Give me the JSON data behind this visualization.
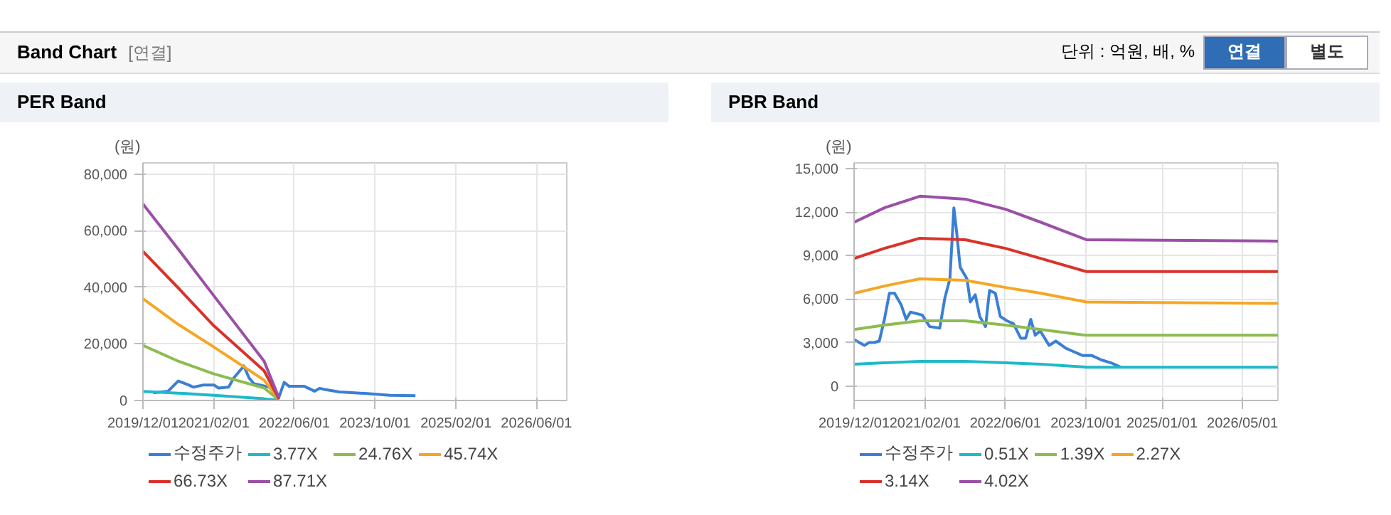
{
  "chart_data": [
    {
      "type": "other",
      "title": "Band Chart",
      "annotations": [
        "[연결]",
        "단위 : 억원, 배, %",
        "연결",
        "별도"
      ]
    },
    {
      "type": "line",
      "title": "PER Band",
      "ylabel": "(원)",
      "legend": "bottom",
      "grid": true,
      "marker": "none",
      "line_style": "solid",
      "xlim": [
        "2019-12-01",
        "2026-12-01"
      ],
      "xticks": [
        {
          "value": "2019-12-01",
          "label": "2019/12/01"
        },
        {
          "value": "2021-02-01",
          "label": "2021/02/01"
        },
        {
          "value": "2022-06-01",
          "label": "2022/06/01"
        },
        {
          "value": "2023-10-01",
          "label": "2023/10/01"
        },
        {
          "value": "2025-02-01",
          "label": "2025/02/01"
        },
        {
          "value": "2026-06-01",
          "label": "2026/06/01"
        }
      ],
      "ylim": [
        0,
        84000
      ],
      "yticks": [
        {
          "value": 0,
          "label": "0"
        },
        {
          "value": 20000,
          "label": "20,000"
        },
        {
          "value": 40000,
          "label": "40,000"
        },
        {
          "value": 60000,
          "label": "60,000"
        },
        {
          "value": 80000,
          "label": "80,000"
        }
      ],
      "series": [
        {
          "name": "수정주가",
          "color": "#3a7fd5",
          "x": [
            "2020-02",
            "2020-05",
            "2020-07",
            "2020-09",
            "2020-10",
            "2020-12",
            "2021-02",
            "2021-03",
            "2021-05",
            "2021-06",
            "2021-08",
            "2021-09",
            "2021-10",
            "2022-01",
            "2022-03",
            "2022-04",
            "2022-05",
            "2022-08",
            "2022-10",
            "2022-11",
            "2022-12",
            "2023-03",
            "2023-06",
            "2023-08",
            "2024-01",
            "2024-06"
          ],
          "values": [
            2700,
            3300,
            6900,
            5500,
            4700,
            5500,
            5500,
            4400,
            4700,
            8000,
            12200,
            8000,
            5900,
            4700,
            1300,
            6400,
            5000,
            5000,
            3300,
            4300,
            3900,
            3000,
            2700,
            2500,
            1800,
            1700
          ]
        },
        {
          "name": "3.77X",
          "color": "#1fb9c9",
          "x": [
            "2019-12",
            "2020-07",
            "2021-02",
            "2021-12",
            "2022-03"
          ],
          "values": [
            3200,
            2600,
            1800,
            600,
            50
          ]
        },
        {
          "name": "24.76X",
          "color": "#8dbb4f",
          "x": [
            "2019-12",
            "2020-07",
            "2021-02",
            "2021-12",
            "2022-03"
          ],
          "values": [
            19500,
            13900,
            9400,
            4400,
            200
          ]
        },
        {
          "name": "45.74X",
          "color": "#f5a623",
          "x": [
            "2019-12",
            "2020-07",
            "2021-02",
            "2021-12",
            "2022-03"
          ],
          "values": [
            36000,
            26900,
            18900,
            7200,
            300
          ]
        },
        {
          "name": "66.73X",
          "color": "#d9322a",
          "x": [
            "2019-12",
            "2020-07",
            "2021-02",
            "2021-12",
            "2022-03"
          ],
          "values": [
            52700,
            39800,
            26400,
            10500,
            500
          ]
        },
        {
          "name": "87.71X",
          "color": "#9b4fa6",
          "x": [
            "2019-12",
            "2020-07",
            "2021-02",
            "2021-12",
            "2022-03"
          ],
          "values": [
            69500,
            53500,
            37000,
            13900,
            800
          ]
        }
      ]
    },
    {
      "type": "line",
      "title": "PBR Band",
      "ylabel": "(원)",
      "legend": "bottom",
      "grid": true,
      "marker": "none",
      "line_style": "solid",
      "xlim": [
        "2019-12-01",
        "2026-12-01"
      ],
      "xticks": [
        {
          "value": "2019-12-01",
          "label": "2019/12/01"
        },
        {
          "value": "2021-02-01",
          "label": "2021/02/01"
        },
        {
          "value": "2022-06-01",
          "label": "2022/06/01"
        },
        {
          "value": "2023-10-01",
          "label": "2023/10/01"
        },
        {
          "value": "2025-01-01",
          "label": "2025/01/01"
        },
        {
          "value": "2026-05-01",
          "label": "2026/05/01"
        }
      ],
      "ylim": [
        -1000,
        15400
      ],
      "yticks": [
        {
          "value": 0,
          "label": "0"
        },
        {
          "value": 3000,
          "label": "3,000"
        },
        {
          "value": 6000,
          "label": "6,000"
        },
        {
          "value": 9000,
          "label": "9,000"
        },
        {
          "value": 12000,
          "label": "12,000"
        },
        {
          "value": 15000,
          "label": "15,000"
        }
      ],
      "series": [
        {
          "name": "수정주가",
          "color": "#3a7fd5",
          "x": [
            "2019-12-01",
            "2020-02-01",
            "2020-03-01",
            "2020-04-01",
            "2020-05-01",
            "2020-06-01",
            "2020-07-01",
            "2020-08-01",
            "2020-09-10",
            "2020-10-10",
            "2020-11-05",
            "2021-01-15",
            "2021-03-01",
            "2021-05-01",
            "2021-06-01",
            "2021-07-01",
            "2021-07-25",
            "2021-08-10",
            "2021-09-01",
            "2021-10-12",
            "2021-11-01",
            "2021-12-01",
            "2021-12-28",
            "2022-02-01",
            "2022-02-25",
            "2022-04-01",
            "2022-05-01",
            "2022-06-10",
            "2022-07-20",
            "2022-09-01",
            "2022-10-01",
            "2022-11-01",
            "2022-11-28",
            "2022-12-28",
            "2023-02-20",
            "2023-04-01",
            "2023-06-01",
            "2023-07-12",
            "2023-09-10",
            "2023-11-05",
            "2024-01-01",
            "2024-02-28",
            "2024-04-25"
          ],
          "values": [
            3200,
            2800,
            3000,
            3000,
            3100,
            4600,
            6400,
            6400,
            5600,
            4600,
            5100,
            4900,
            4100,
            4000,
            6100,
            7400,
            12300,
            10700,
            8200,
            7400,
            5800,
            6300,
            4800,
            4100,
            6600,
            6400,
            4800,
            4500,
            4300,
            3300,
            3300,
            4600,
            3500,
            3800,
            2800,
            3100,
            2600,
            2400,
            2100,
            2100,
            1800,
            1600,
            1300
          ]
        },
        {
          "name": "0.51X",
          "color": "#1fb9c9",
          "x": [
            "2019-12",
            "2020-06",
            "2021-01",
            "2021-10",
            "2022-06",
            "2023-01",
            "2023-10",
            "2026-12"
          ],
          "values": [
            1500,
            1600,
            1700,
            1700,
            1600,
            1500,
            1300,
            1300
          ]
        },
        {
          "name": "1.39X",
          "color": "#8dbb4f",
          "x": [
            "2019-12",
            "2020-06",
            "2021-01",
            "2021-10",
            "2022-06",
            "2023-01",
            "2023-10",
            "2026-12"
          ],
          "values": [
            3900,
            4200,
            4500,
            4500,
            4200,
            3900,
            3500,
            3500
          ]
        },
        {
          "name": "2.27X",
          "color": "#f5a623",
          "x": [
            "2019-12",
            "2020-06",
            "2021-01",
            "2021-10",
            "2022-06",
            "2023-01",
            "2023-10",
            "2026-12"
          ],
          "values": [
            6400,
            6900,
            7400,
            7300,
            6800,
            6400,
            5800,
            5700
          ]
        },
        {
          "name": "3.14X",
          "color": "#d9322a",
          "x": [
            "2019-12",
            "2020-06",
            "2021-01",
            "2021-10",
            "2022-06",
            "2023-01",
            "2023-10",
            "2026-12"
          ],
          "values": [
            8800,
            9500,
            10200,
            10100,
            9500,
            8800,
            7900,
            7900
          ]
        },
        {
          "name": "4.02X",
          "color": "#9b4fa6",
          "x": [
            "2019-12",
            "2020-06",
            "2021-01",
            "2021-10",
            "2022-06",
            "2023-01",
            "2023-10",
            "2026-12"
          ],
          "values": [
            11300,
            12300,
            13100,
            12900,
            12200,
            11300,
            10100,
            10000
          ]
        }
      ]
    }
  ]
}
